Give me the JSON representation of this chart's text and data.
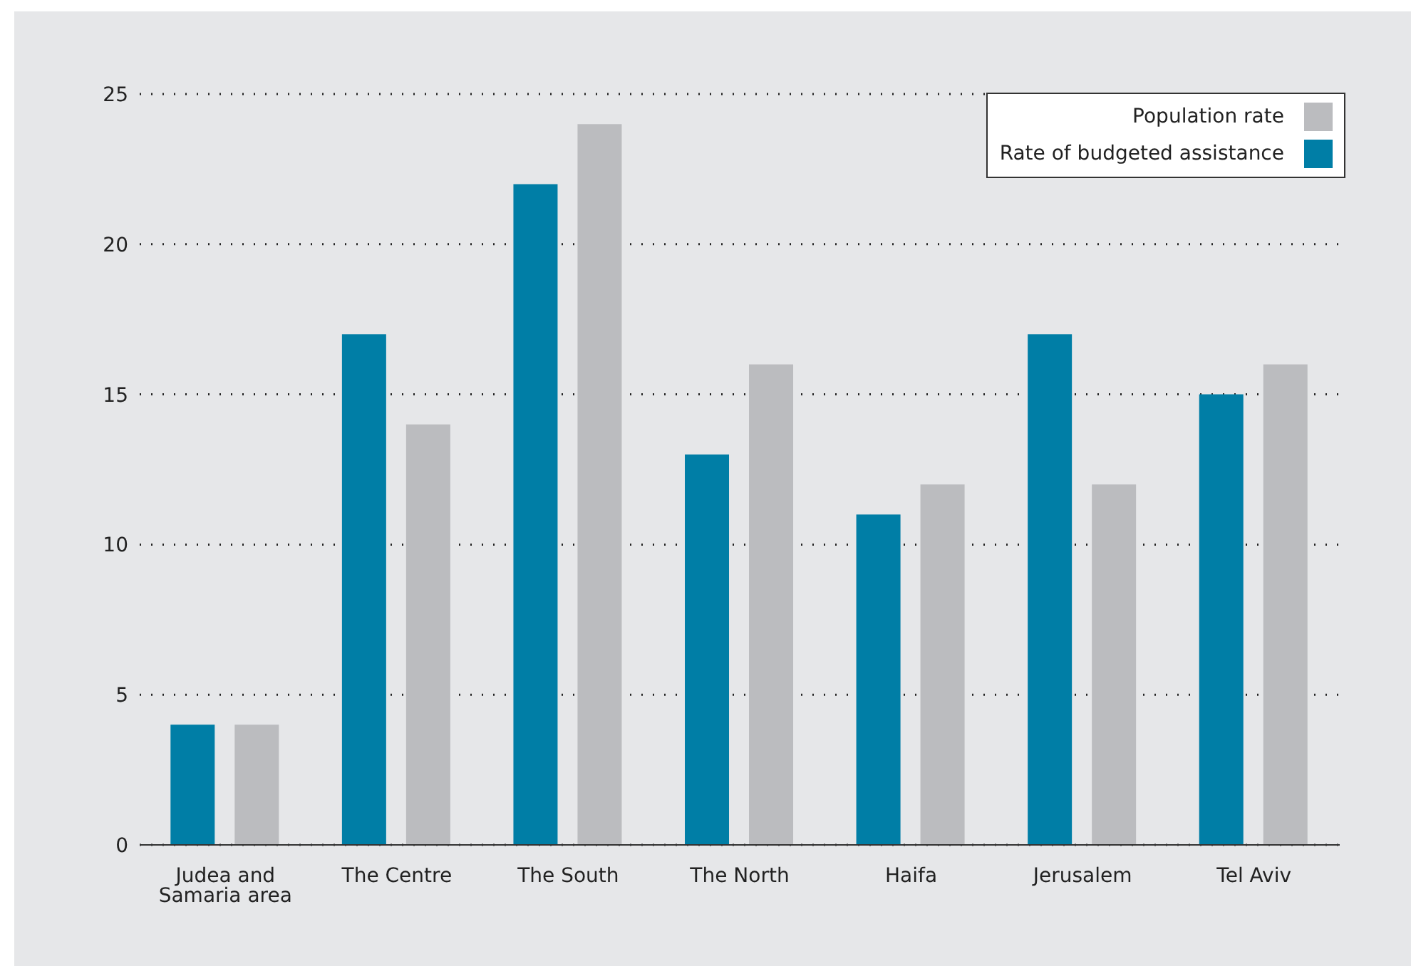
{
  "chart_data": {
    "type": "bar",
    "categories": [
      "Judea and Samaria area",
      "The Centre",
      "The South",
      "The North",
      "Haifa",
      "Jerusalem",
      "Tel Aviv"
    ],
    "series": [
      {
        "name": "Rate of budgeted assistance",
        "color": "#007ea6",
        "values": [
          4,
          17,
          22,
          13,
          11,
          17,
          15
        ]
      },
      {
        "name": "Population rate",
        "color": "#bbbcbf",
        "values": [
          4,
          14,
          24,
          16,
          12,
          12,
          16
        ]
      }
    ],
    "ylim": [
      0,
      25
    ],
    "yticks": [
      0,
      5,
      10,
      15,
      20,
      25
    ],
    "grid": "y",
    "legend": "top right"
  }
}
